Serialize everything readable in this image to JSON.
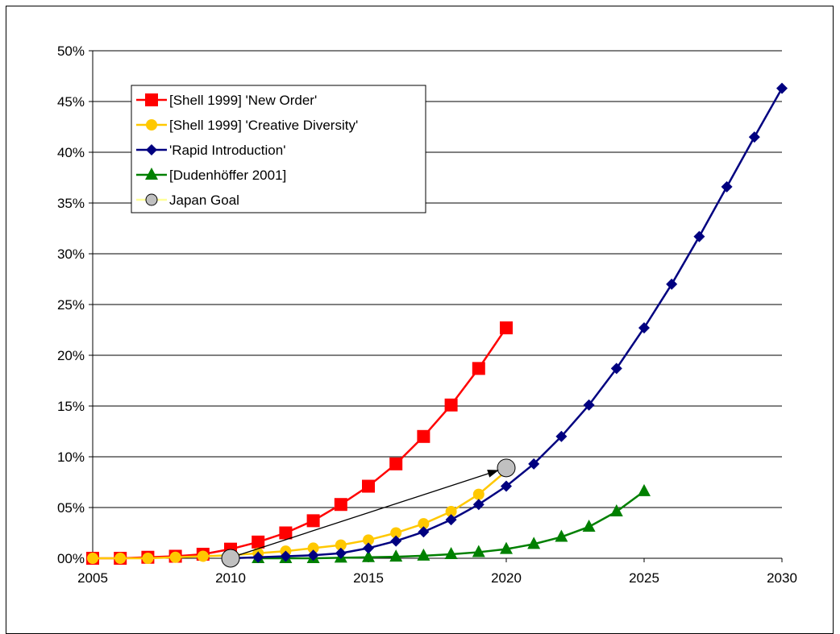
{
  "chart_data": {
    "type": "line",
    "title": "",
    "xlabel": "",
    "ylabel": "",
    "xlim": [
      2005,
      2030
    ],
    "ylim": [
      0,
      50
    ],
    "grid": true,
    "legend_position": "top-left",
    "x_ticks": [
      "2005",
      "2010",
      "2015",
      "2020",
      "2025",
      "2030"
    ],
    "y_ticks": [
      "00%",
      "05%",
      "10%",
      "15%",
      "20%",
      "25%",
      "30%",
      "35%",
      "40%",
      "45%",
      "50%"
    ],
    "series": [
      {
        "name": "[Shell 1999] 'New Order'",
        "color": "#ff0000",
        "marker": "square",
        "x": [
          2005,
          2006,
          2007,
          2008,
          2009,
          2010,
          2011,
          2012,
          2013,
          2014,
          2015,
          2016,
          2017,
          2018,
          2019,
          2020
        ],
        "values": [
          0.0,
          0.0,
          0.1,
          0.2,
          0.4,
          0.9,
          1.6,
          2.5,
          3.7,
          5.3,
          7.1,
          9.3,
          12.0,
          15.1,
          18.7,
          22.7
        ]
      },
      {
        "name": "[Shell 1999] 'Creative Diversity'",
        "color": "#ffc800",
        "marker": "circle",
        "x": [
          2005,
          2006,
          2007,
          2008,
          2009,
          2010,
          2011,
          2012,
          2013,
          2014,
          2015,
          2016,
          2017,
          2018,
          2019,
          2020
        ],
        "values": [
          0.0,
          0.0,
          0.0,
          0.1,
          0.2,
          0.3,
          0.5,
          0.7,
          1.0,
          1.3,
          1.8,
          2.5,
          3.4,
          4.6,
          6.3,
          8.6
        ]
      },
      {
        "name": "'Rapid Introduction'",
        "color": "#000080",
        "marker": "diamond",
        "x": [
          2010,
          2011,
          2012,
          2013,
          2014,
          2015,
          2016,
          2017,
          2018,
          2019,
          2020,
          2021,
          2022,
          2023,
          2024,
          2025,
          2026,
          2027,
          2028,
          2029,
          2030
        ],
        "values": [
          0.0,
          0.1,
          0.2,
          0.3,
          0.5,
          1.0,
          1.7,
          2.6,
          3.8,
          5.3,
          7.1,
          9.3,
          12.0,
          15.1,
          18.7,
          22.7,
          27.0,
          31.7,
          36.6,
          41.5,
          46.3
        ]
      },
      {
        "name": "[Dudenhöffer 2001]",
        "color": "#008000",
        "marker": "triangle",
        "x": [
          2011,
          2012,
          2013,
          2014,
          2015,
          2016,
          2017,
          2018,
          2019,
          2020,
          2021,
          2022,
          2023,
          2024,
          2025
        ],
        "values": [
          0.0,
          0.0,
          0.0,
          0.05,
          0.1,
          0.15,
          0.25,
          0.4,
          0.6,
          0.9,
          1.4,
          2.1,
          3.1,
          4.6,
          6.6
        ]
      },
      {
        "name": "Japan Goal",
        "color": "#ffff99",
        "marker": "big-circle",
        "x": [
          2010,
          2020
        ],
        "values": [
          0.0,
          8.9
        ]
      }
    ],
    "annotations": [
      {
        "type": "arrow",
        "from": [
          2010,
          0.0
        ],
        "to": [
          2020,
          8.9
        ]
      }
    ]
  }
}
